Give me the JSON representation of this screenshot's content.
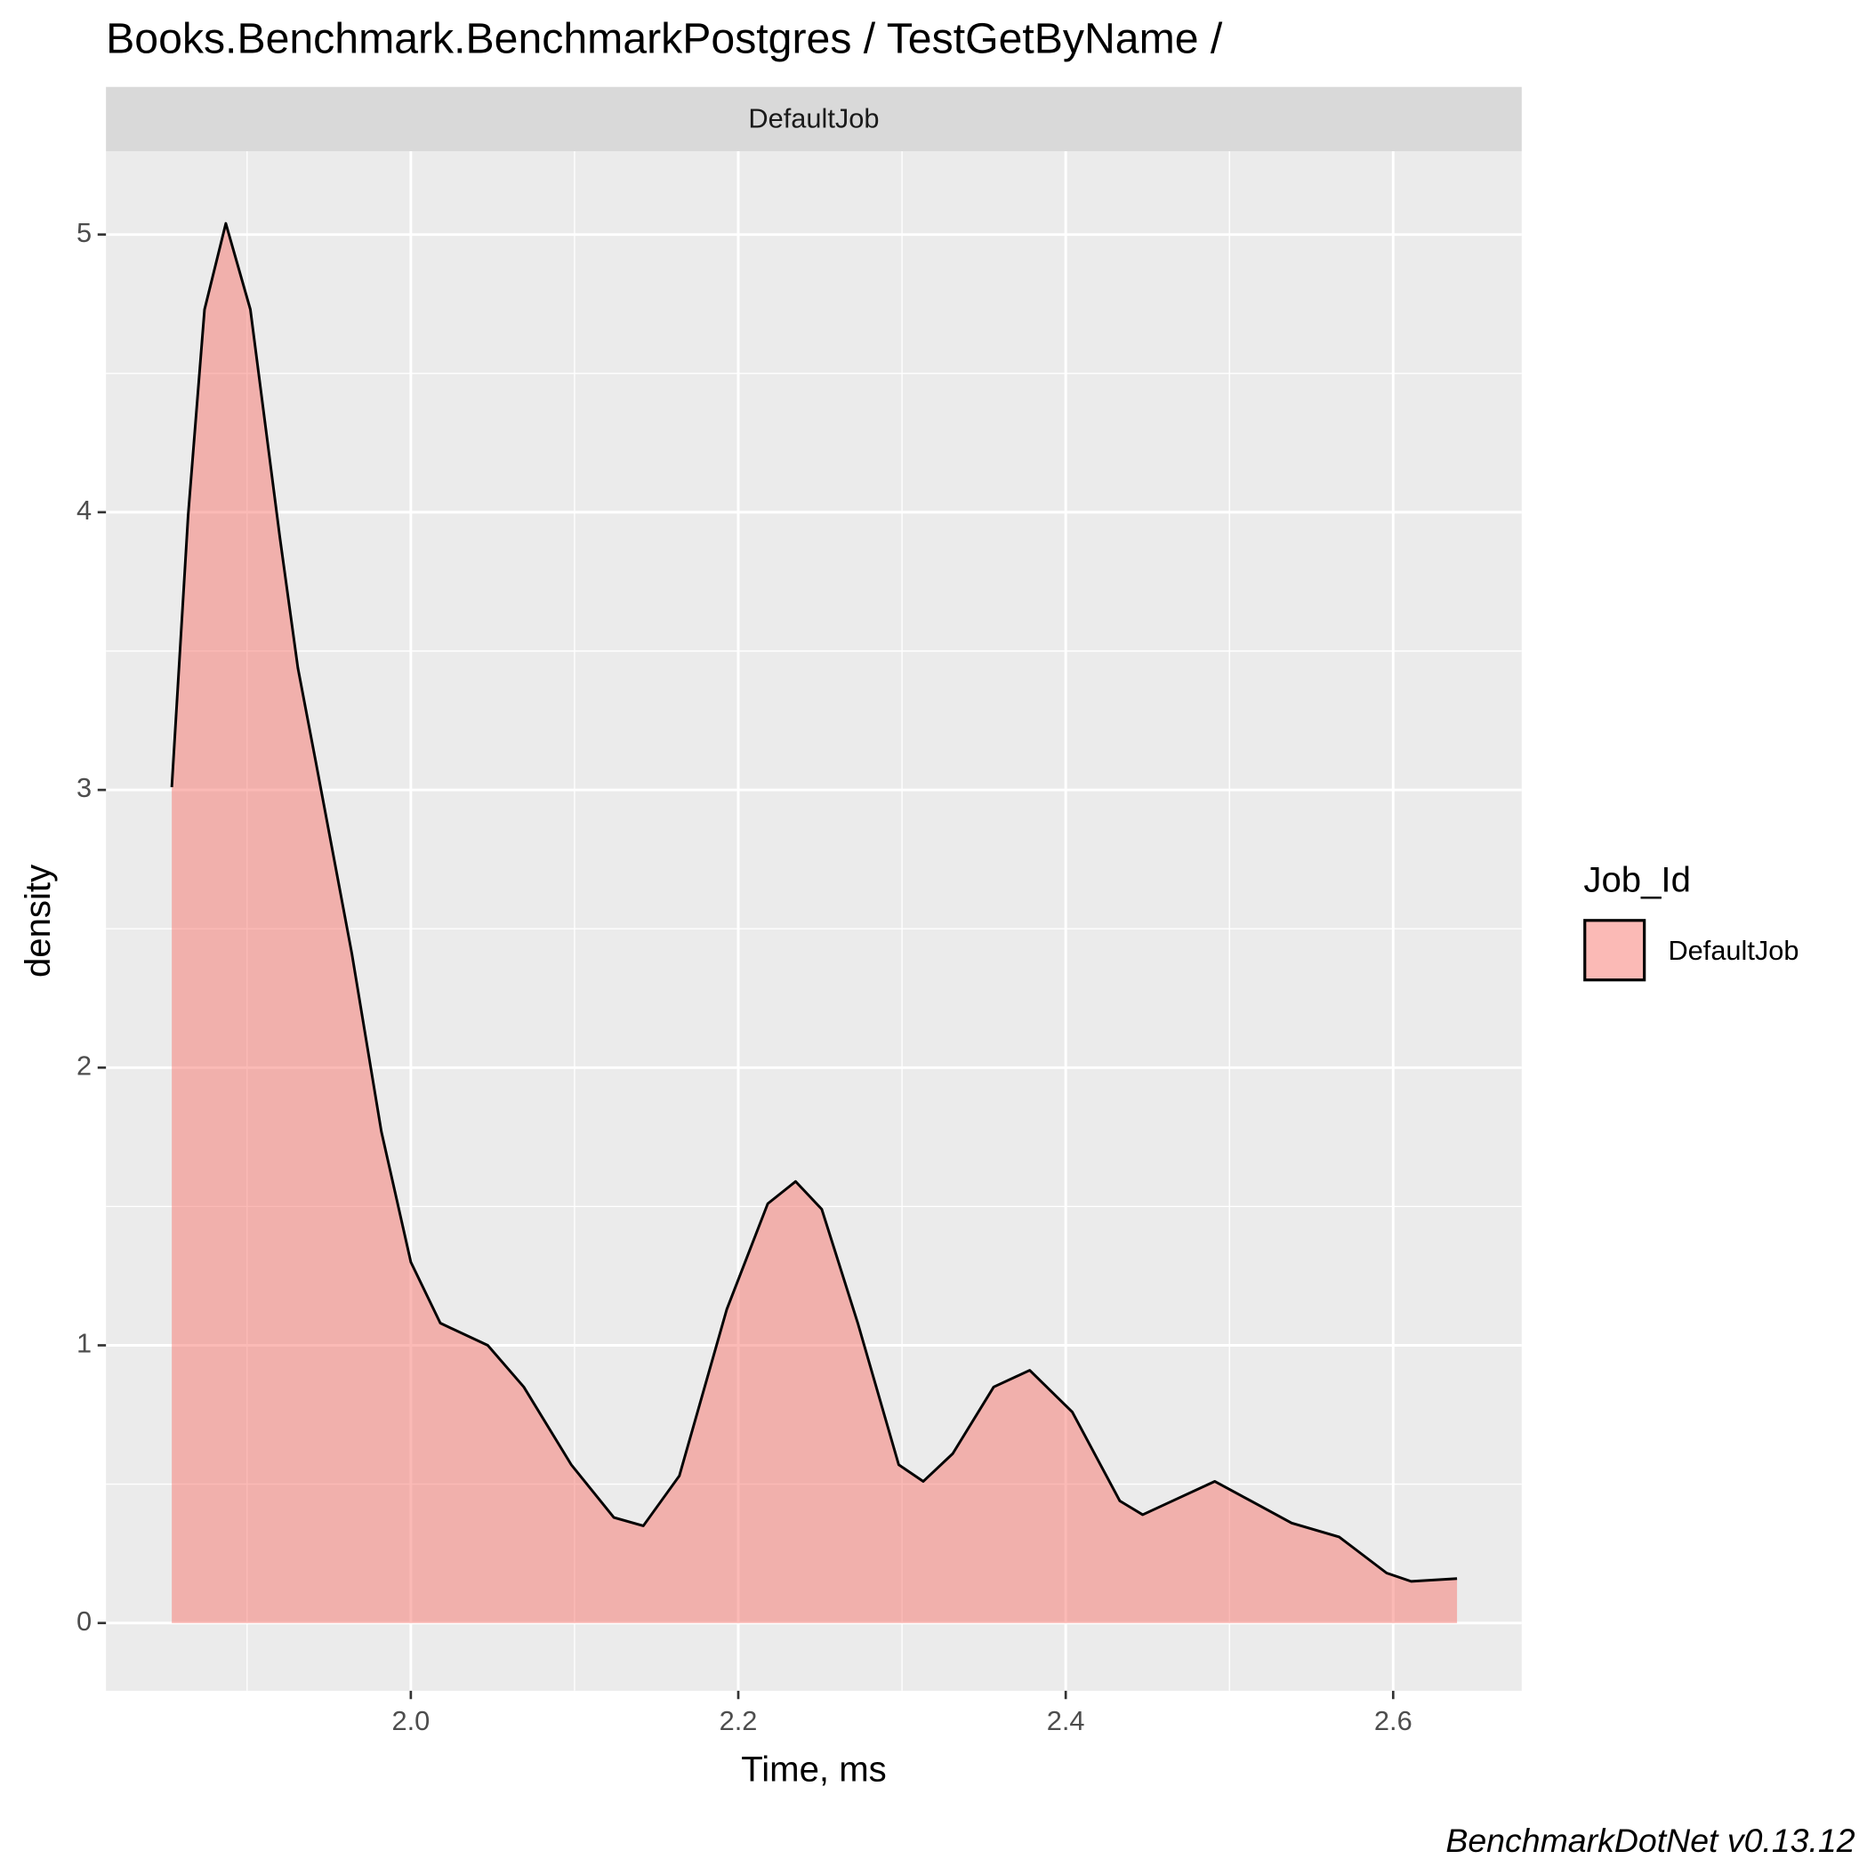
{
  "chart_data": {
    "type": "density",
    "title": "Books.Benchmark.BenchmarkPostgres / TestGetByName /",
    "strip": "DefaultJob",
    "xlabel": "Time, ms",
    "ylabel": "density",
    "caption": "BenchmarkDotNet v0.13.12",
    "legend_title": "Job_Id",
    "legend": "right",
    "grid": true,
    "x": [
      1.854,
      1.864,
      1.874,
      1.887,
      1.902,
      1.92,
      1.931,
      1.942,
      1.964,
      1.982,
      2.0,
      2.018,
      2.047,
      2.069,
      2.098,
      2.124,
      2.142,
      2.164,
      2.193,
      2.218,
      2.235,
      2.251,
      2.273,
      2.298,
      2.313,
      2.331,
      2.356,
      2.378,
      2.404,
      2.433,
      2.447,
      2.469,
      2.491,
      2.513,
      2.538,
      2.567,
      2.596,
      2.611,
      2.639
    ],
    "series": [
      {
        "name": "DefaultJob",
        "color": "#F8766D",
        "values": [
          3.01,
          3.99,
          4.73,
          5.04,
          4.73,
          3.91,
          3.44,
          3.1,
          2.41,
          1.77,
          1.3,
          1.08,
          1.0,
          0.85,
          0.57,
          0.38,
          0.35,
          0.53,
          1.13,
          1.51,
          1.59,
          1.49,
          1.08,
          0.57,
          0.51,
          0.61,
          0.85,
          0.91,
          0.76,
          0.44,
          0.39,
          0.45,
          0.51,
          0.44,
          0.36,
          0.31,
          0.18,
          0.15,
          0.16
        ]
      }
    ],
    "xlim": [
      1.8138,
      2.6785
    ],
    "ylim": [
      -0.244,
      5.3
    ],
    "xticks": [
      {
        "value": 2.0,
        "label": "2.0"
      },
      {
        "value": 2.2,
        "label": "2.2"
      },
      {
        "value": 2.4,
        "label": "2.4"
      },
      {
        "value": 2.6,
        "label": "2.6"
      }
    ],
    "yticks": [
      0,
      1,
      2,
      3,
      4,
      5
    ],
    "x_minor_ticks": [
      1.9,
      2.1,
      2.3,
      2.5
    ],
    "y_minor_ticks": [
      0.5,
      1.5,
      2.5,
      3.5,
      4.5
    ]
  }
}
